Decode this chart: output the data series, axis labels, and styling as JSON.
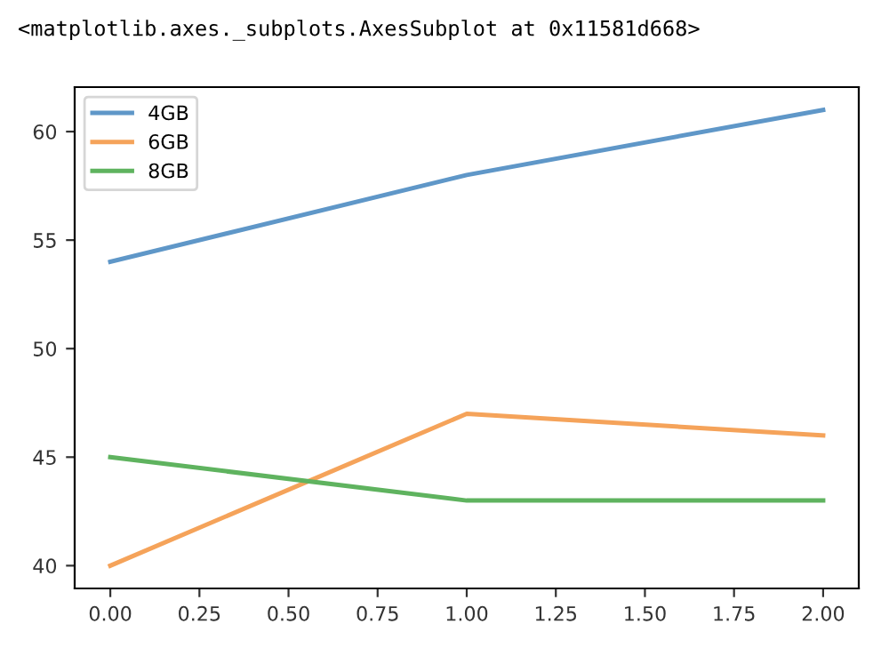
{
  "chart_data": {
    "type": "line",
    "annotations": [
      "<matplotlib.axes._subplots.AxesSubplot at 0x11581d668>"
    ],
    "x": [
      0,
      1,
      2
    ],
    "series": [
      {
        "name": "4GB",
        "color": "#5f97c8",
        "values": [
          54,
          58,
          61
        ]
      },
      {
        "name": "6GB",
        "color": "#f5a35a",
        "values": [
          40,
          47,
          46
        ]
      },
      {
        "name": "8GB",
        "color": "#5fb35f",
        "values": [
          45,
          43,
          43
        ]
      }
    ],
    "xlim": [
      -0.1,
      2.1
    ],
    "ylim": [
      38.95,
      62.05
    ],
    "xticks": [
      {
        "value": 0,
        "label": "0.00"
      },
      {
        "value": 0.25,
        "label": "0.25"
      },
      {
        "value": 0.5,
        "label": "0.50"
      },
      {
        "value": 0.75,
        "label": "0.75"
      },
      {
        "value": 1,
        "label": "1.00"
      },
      {
        "value": 1.25,
        "label": "1.25"
      },
      {
        "value": 1.5,
        "label": "1.50"
      },
      {
        "value": 1.75,
        "label": "1.75"
      },
      {
        "value": 2,
        "label": "2.00"
      }
    ],
    "yticks": [
      40,
      45,
      50,
      55,
      60
    ],
    "legend": "top left",
    "grid": false,
    "marker": "none",
    "line_style": "solid"
  }
}
